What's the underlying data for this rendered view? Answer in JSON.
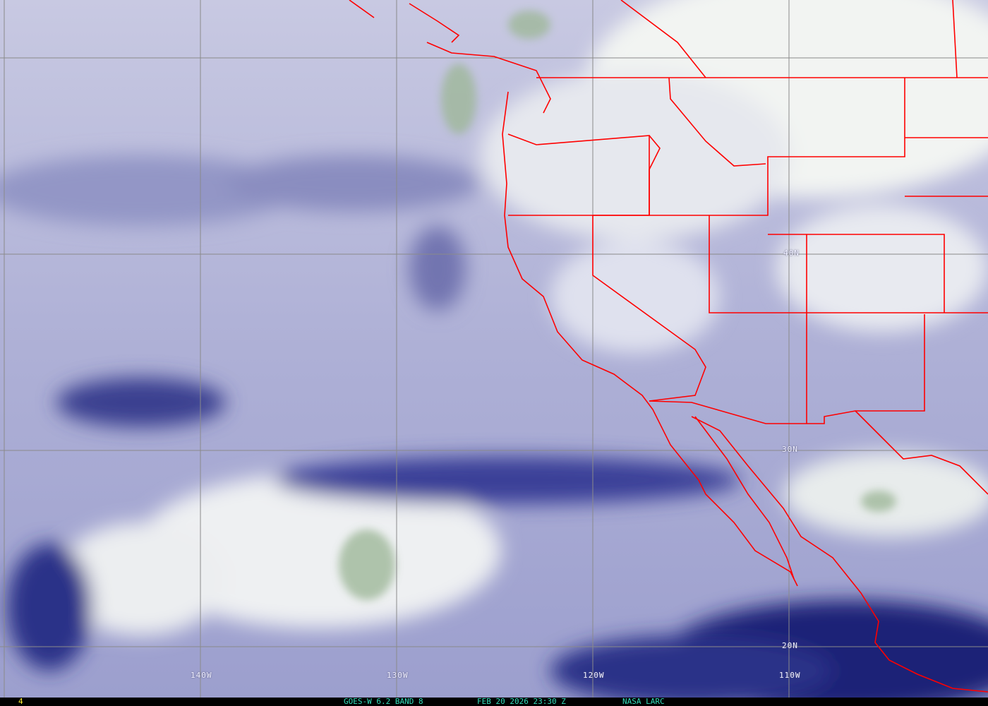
{
  "map": {
    "lon_labels": [
      "140W",
      "130W",
      "120W",
      "110W"
    ],
    "lat_labels": [
      "40N",
      "30N",
      "20N"
    ],
    "border_color": "#ff0000",
    "grid_color": "#8a8a8a",
    "imagery": "water vapor"
  },
  "footer": {
    "frame_number": "4",
    "satellite_band": "GOES-W 6.2 BAND 8",
    "timestamp": "FEB 20 2026 23:30 Z",
    "credit": "NASA LARC",
    "text_color": "#33ddbb",
    "frame_color": "#ffee33"
  }
}
